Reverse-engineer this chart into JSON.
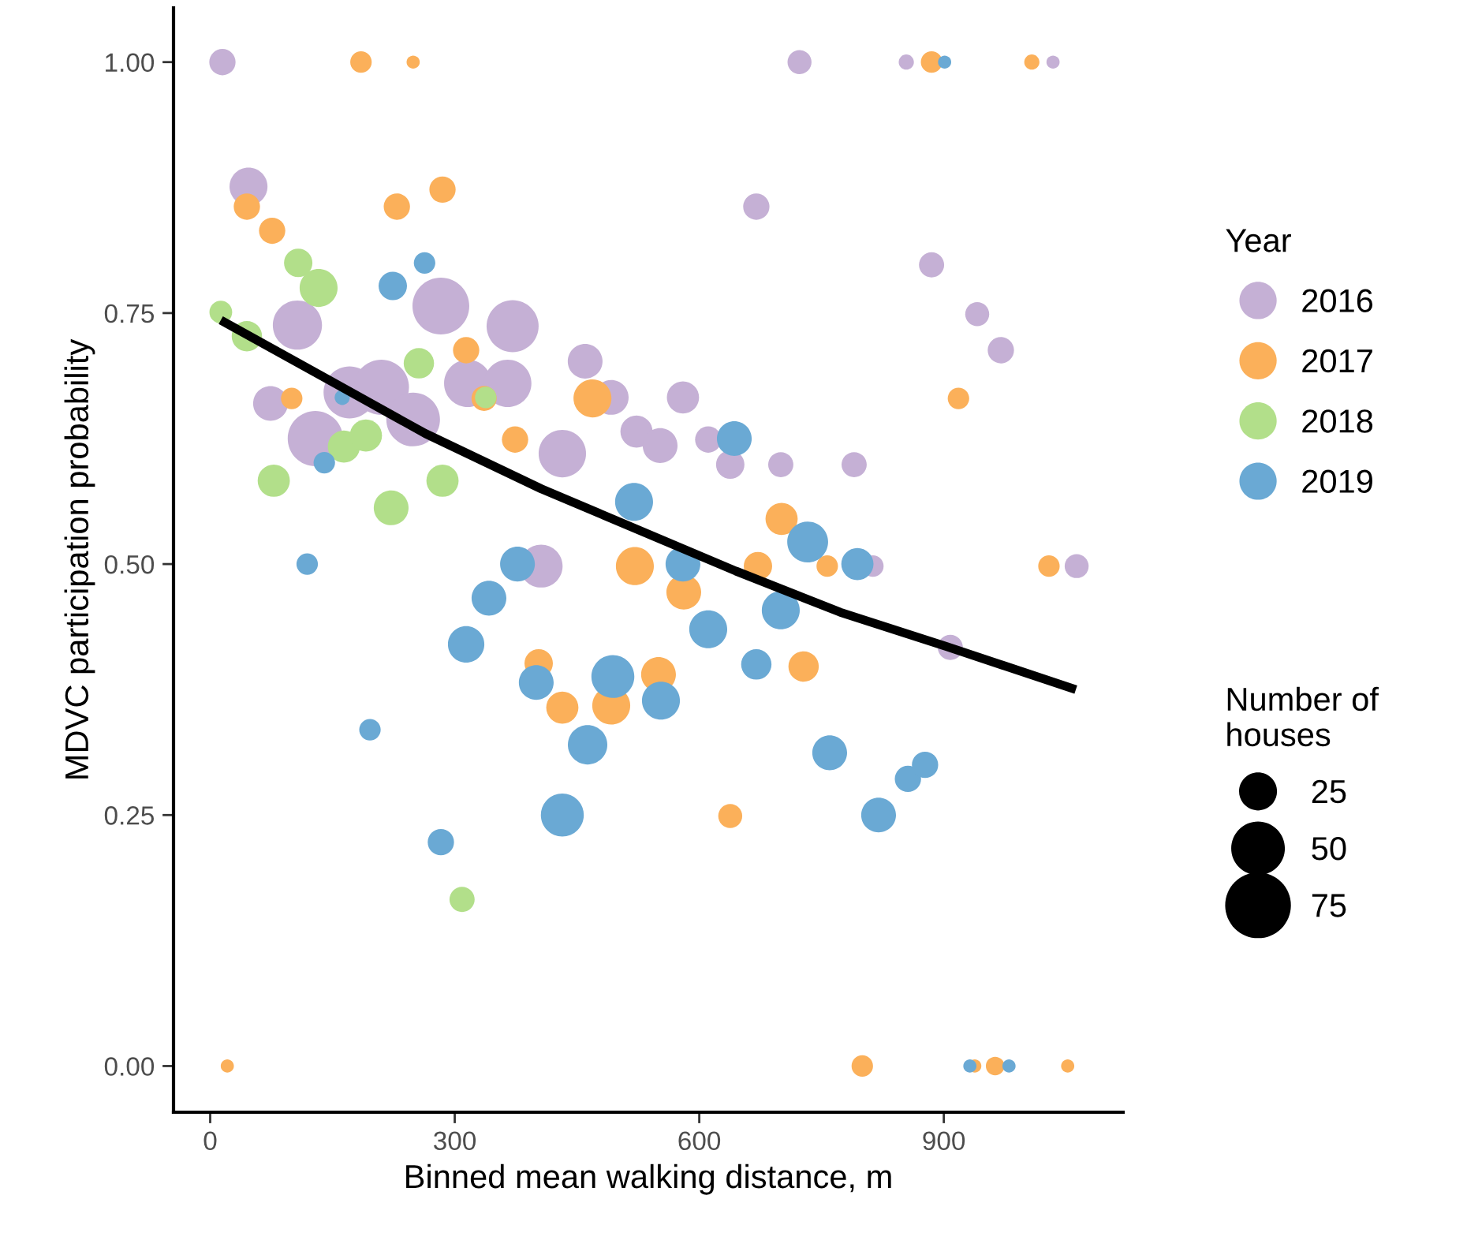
{
  "chart_data": {
    "type": "bubble",
    "xlabel": "Binned mean walking distance, m",
    "ylabel": "MDVC participation probability",
    "legend_title": "Year",
    "annotations": [
      "Number of houses"
    ],
    "xlim": [
      -45,
      1120
    ],
    "ylim": [
      -0.046,
      1.054
    ],
    "xticks": [
      0,
      300,
      600,
      900
    ],
    "yticks": [
      {
        "value": 0,
        "label": "0.00"
      },
      {
        "value": 0.25,
        "label": "0.25"
      },
      {
        "value": 0.5,
        "label": "0.50"
      },
      {
        "value": 0.75,
        "label": "0.75"
      },
      {
        "value": 1,
        "label": "1.00"
      }
    ],
    "size_legend": [
      25,
      50,
      75
    ],
    "grid": false,
    "legend": "right",
    "marker": "circle",
    "series": [
      {
        "name": "2016",
        "color": "#c5b0d5",
        "x": [
          15,
          723,
          854,
          1034,
          47,
          107,
          74,
          129,
          171,
          210,
          249,
          283,
          316,
          365,
          371,
          432,
          460,
          492,
          523,
          552,
          580,
          611,
          638,
          700,
          790,
          406,
          813,
          908,
          1063,
          670,
          885,
          941,
          970
        ],
        "values": [
          1.0,
          1.0,
          1.0,
          1.0,
          0.876,
          0.738,
          0.66,
          0.625,
          0.671,
          0.676,
          0.644,
          0.757,
          0.68,
          0.68,
          0.737,
          0.61,
          0.702,
          0.666,
          0.632,
          0.618,
          0.666,
          0.624,
          0.599,
          0.599,
          0.599,
          0.498,
          0.498,
          0.417,
          0.498,
          0.856,
          0.798,
          0.749,
          0.713
        ],
        "sizes": [
          12,
          10,
          4,
          3,
          25,
          42,
          21,
          53,
          47,
          53,
          50,
          56,
          39,
          39,
          47,
          39,
          21,
          21,
          18,
          21,
          18,
          12,
          14,
          11,
          11,
          32,
          8,
          11,
          10,
          12,
          11,
          10,
          12
        ]
      },
      {
        "name": "2017",
        "color": "#fbb05a",
        "x": [
          21,
          185,
          249,
          885,
          1008,
          45,
          76,
          229,
          285,
          314,
          336,
          100,
          469,
          374,
          521,
          403,
          432,
          492,
          701,
          757,
          1029,
          672,
          581,
          728,
          550,
          638,
          918,
          800,
          938,
          963,
          1052
        ],
        "values": [
          0,
          1.0,
          1.0,
          1.0,
          1.0,
          0.856,
          0.832,
          0.856,
          0.873,
          0.713,
          0.665,
          0.665,
          0.665,
          0.624,
          0.498,
          0.401,
          0.357,
          0.359,
          0.545,
          0.498,
          0.498,
          0.498,
          0.472,
          0.398,
          0.39,
          0.249,
          0.665,
          0,
          0,
          0,
          0
        ],
        "sizes": [
          3,
          8,
          3,
          8,
          4,
          12,
          12,
          12,
          12,
          12,
          11,
          8,
          25,
          12,
          25,
          14,
          18,
          25,
          18,
          8,
          8,
          14,
          21,
          16,
          21,
          10,
          8,
          8,
          3,
          6,
          3
        ]
      },
      {
        "name": "2018",
        "color": "#b2df8a",
        "x": [
          13,
          45,
          108,
          133,
          256,
          338,
          164,
          191,
          78,
          285,
          222,
          309
        ],
        "values": [
          0.751,
          0.727,
          0.8,
          0.775,
          0.7,
          0.666,
          0.617,
          0.628,
          0.583,
          0.583,
          0.556,
          0.166
        ],
        "sizes": [
          9,
          16,
          14,
          25,
          16,
          8,
          18,
          18,
          18,
          18,
          21,
          11
        ]
      },
      {
        "name": "2019",
        "color": "#6aa9d4",
        "x": [
          901,
          263,
          224,
          162,
          140,
          119,
          377,
          342,
          314,
          520,
          400,
          494,
          463,
          432,
          196,
          283,
          643,
          733,
          794,
          580,
          611,
          700,
          670,
          553,
          760,
          856,
          877,
          820,
          932,
          980
        ],
        "values": [
          1.0,
          0.8,
          0.777,
          0.666,
          0.601,
          0.5,
          0.5,
          0.466,
          0.42,
          0.562,
          0.382,
          0.388,
          0.32,
          0.25,
          0.335,
          0.223,
          0.625,
          0.522,
          0.5,
          0.5,
          0.435,
          0.454,
          0.4,
          0.364,
          0.312,
          0.286,
          0.3,
          0.25,
          0,
          0
        ],
        "sizes": [
          3,
          8,
          14,
          4,
          8,
          8,
          21,
          21,
          23,
          25,
          21,
          32,
          27,
          32,
          8,
          12,
          21,
          29,
          18,
          21,
          25,
          25,
          16,
          25,
          21,
          12,
          12,
          21,
          3,
          3
        ]
      },
      {
        "type": "line",
        "marker": "none",
        "color": "#000000",
        "x": [
          13,
          142,
          264,
          406,
          645,
          773,
          903,
          1062
        ],
        "values": [
          0.743,
          0.685,
          0.63,
          0.575,
          0.493,
          0.452,
          0.418,
          0.375
        ]
      }
    ]
  }
}
